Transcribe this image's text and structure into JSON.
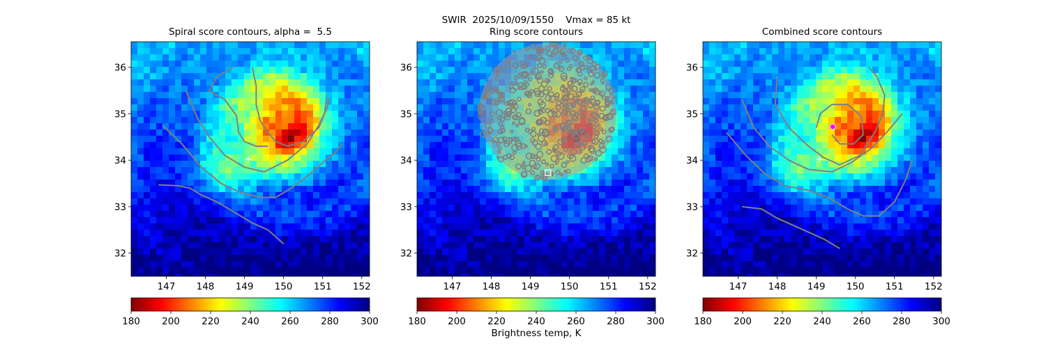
{
  "suptitle": "SWIR  2025/10/09/1550    Vmax = 85 kt",
  "colorbar_label": "Brightness temp, K",
  "colormap": [
    "#800000",
    "#ff0000",
    "#ff8000",
    "#ffff00",
    "#80ff80",
    "#00ffff",
    "#0080ff",
    "#0000ff",
    "#000080"
  ],
  "contour_color": "#808080",
  "marker_color": "#ffffff",
  "center_marker_color": "#ff00ff",
  "chart_data": [
    {
      "type": "heatmap",
      "title": "Spiral score contours, alpha =  5.5",
      "xlim": [
        146.1,
        152.2
      ],
      "ylim": [
        31.5,
        36.55
      ],
      "xticks": [
        "147",
        "148",
        "149",
        "150",
        "151",
        "152"
      ],
      "yticks": [
        "32",
        "33",
        "34",
        "35",
        "36"
      ],
      "colorbar": {
        "vmin": 180,
        "vmax": 300,
        "ticks": [
          "180",
          "200",
          "220",
          "240",
          "260",
          "280",
          "300"
        ]
      },
      "cross_marker": [
        149.1,
        34.02
      ],
      "contours": [
        [
          [
            150.0,
            32.2
          ],
          [
            149.6,
            32.5
          ],
          [
            149.2,
            32.65
          ],
          [
            148.8,
            32.85
          ],
          [
            148.3,
            33.1
          ],
          [
            147.9,
            33.25
          ],
          [
            147.6,
            33.4
          ],
          [
            147.3,
            33.45
          ],
          [
            146.8,
            33.47
          ]
        ],
        [
          [
            146.9,
            34.75
          ],
          [
            147.4,
            34.35
          ],
          [
            147.9,
            33.85
          ],
          [
            148.4,
            33.5
          ],
          [
            148.9,
            33.3
          ],
          [
            149.4,
            33.2
          ],
          [
            149.8,
            33.2
          ],
          [
            150.2,
            33.4
          ],
          [
            150.6,
            33.65
          ],
          [
            151.0,
            33.95
          ],
          [
            151.3,
            34.15
          ],
          [
            151.5,
            34.35
          ]
        ],
        [
          [
            147.5,
            35.5
          ],
          [
            147.8,
            34.9
          ],
          [
            148.1,
            34.5
          ],
          [
            148.5,
            34.1
          ],
          [
            149.0,
            33.85
          ],
          [
            149.5,
            33.75
          ],
          [
            150.1,
            34.0
          ],
          [
            150.6,
            34.35
          ],
          [
            150.9,
            34.75
          ],
          [
            151.1,
            35.1
          ],
          [
            151.2,
            35.35
          ]
        ],
        [
          [
            149.2,
            36.0
          ],
          [
            149.3,
            35.6
          ],
          [
            149.3,
            35.2
          ],
          [
            149.4,
            34.85
          ],
          [
            149.6,
            34.6
          ],
          [
            149.8,
            34.4
          ],
          [
            150.1,
            34.3
          ],
          [
            150.5,
            34.4
          ],
          [
            150.9,
            34.7
          ],
          [
            151.05,
            35.0
          ],
          [
            151.1,
            35.35
          ]
        ],
        [
          [
            148.7,
            36.0
          ],
          [
            148.3,
            35.8
          ],
          [
            148.1,
            35.5
          ],
          [
            148.5,
            35.3
          ],
          [
            148.8,
            34.95
          ],
          [
            148.85,
            34.6
          ],
          [
            149.0,
            34.4
          ],
          [
            149.3,
            34.3
          ],
          [
            149.6,
            34.3
          ]
        ]
      ]
    },
    {
      "type": "heatmap",
      "title": "Ring score contours",
      "xlim": [
        146.1,
        152.2
      ],
      "ylim": [
        31.5,
        36.55
      ],
      "xticks": [
        "147",
        "148",
        "149",
        "150",
        "151",
        "152"
      ],
      "yticks": [
        "32",
        "33",
        "34",
        "35",
        "36"
      ],
      "colorbar": {
        "vmin": 180,
        "vmax": 300,
        "ticks": [
          "180",
          "200",
          "220",
          "240",
          "260",
          "280",
          "300"
        ]
      },
      "square_marker": [
        149.45,
        33.73
      ],
      "ring_disk": {
        "center": [
          149.45,
          35.05
        ],
        "radius_lon": 1.75
      }
    },
    {
      "type": "heatmap",
      "title": "Combined score contours",
      "xlim": [
        146.1,
        152.2
      ],
      "ylim": [
        31.5,
        36.55
      ],
      "xticks": [
        "147",
        "148",
        "149",
        "150",
        "151",
        "152"
      ],
      "yticks": [
        "32",
        "33",
        "34",
        "35",
        "36"
      ],
      "colorbar": {
        "vmin": 180,
        "vmax": 300,
        "ticks": [
          "180",
          "200",
          "220",
          "240",
          "260",
          "280",
          "300"
        ]
      },
      "cross_marker": [
        149.08,
        34.02
      ],
      "center_marker": [
        149.42,
        34.72
      ],
      "contours": [
        [
          [
            149.6,
            32.1
          ],
          [
            149.2,
            32.3
          ],
          [
            148.8,
            32.45
          ],
          [
            148.4,
            32.6
          ],
          [
            148.0,
            32.75
          ],
          [
            147.6,
            32.95
          ],
          [
            147.1,
            33.0
          ]
        ],
        [
          [
            146.7,
            34.6
          ],
          [
            147.2,
            34.1
          ],
          [
            147.7,
            33.7
          ],
          [
            148.2,
            33.45
          ],
          [
            148.8,
            33.35
          ],
          [
            149.3,
            33.2
          ],
          [
            149.8,
            32.95
          ],
          [
            150.2,
            32.8
          ],
          [
            150.6,
            32.8
          ],
          [
            151.0,
            33.1
          ],
          [
            151.3,
            33.6
          ],
          [
            151.45,
            34.0
          ]
        ],
        [
          [
            147.1,
            35.3
          ],
          [
            147.4,
            34.7
          ],
          [
            147.8,
            34.3
          ],
          [
            148.3,
            34.0
          ],
          [
            148.8,
            33.8
          ],
          [
            149.4,
            33.75
          ],
          [
            149.9,
            33.95
          ],
          [
            150.4,
            34.25
          ],
          [
            150.8,
            34.6
          ],
          [
            151.2,
            35.0
          ]
        ],
        [
          [
            148.0,
            35.8
          ],
          [
            147.95,
            35.2
          ],
          [
            148.3,
            34.7
          ],
          [
            148.8,
            34.3
          ],
          [
            149.2,
            34.05
          ],
          [
            149.6,
            33.9
          ],
          [
            150.1,
            34.1
          ],
          [
            150.5,
            34.6
          ],
          [
            150.7,
            35.0
          ],
          [
            150.75,
            35.4
          ],
          [
            150.55,
            35.8
          ],
          [
            150.35,
            36.0
          ]
        ],
        [
          [
            149.0,
            34.7
          ],
          [
            149.1,
            35.0
          ],
          [
            149.4,
            35.2
          ],
          [
            149.8,
            35.2
          ],
          [
            150.15,
            34.95
          ],
          [
            150.2,
            34.55
          ],
          [
            149.95,
            34.35
          ],
          [
            149.6,
            34.35
          ],
          [
            149.4,
            34.55
          ]
        ]
      ]
    }
  ]
}
